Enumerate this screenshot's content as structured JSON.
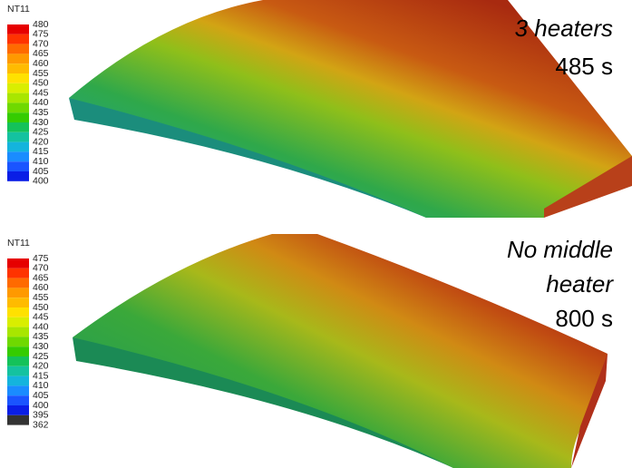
{
  "panels": [
    {
      "legend": {
        "title": "NT11",
        "labels": [
          480,
          475,
          470,
          465,
          460,
          455,
          450,
          445,
          440,
          435,
          430,
          425,
          420,
          415,
          410,
          405,
          400
        ]
      },
      "caption": [
        "3 heaters",
        "485 s"
      ]
    },
    {
      "legend": {
        "title": "NT11",
        "labels": [
          475,
          470,
          465,
          460,
          455,
          450,
          445,
          440,
          435,
          430,
          425,
          420,
          415,
          410,
          405,
          400,
          395,
          362
        ]
      },
      "caption": [
        "No middle",
        "heater",
        "800 s"
      ]
    }
  ]
}
